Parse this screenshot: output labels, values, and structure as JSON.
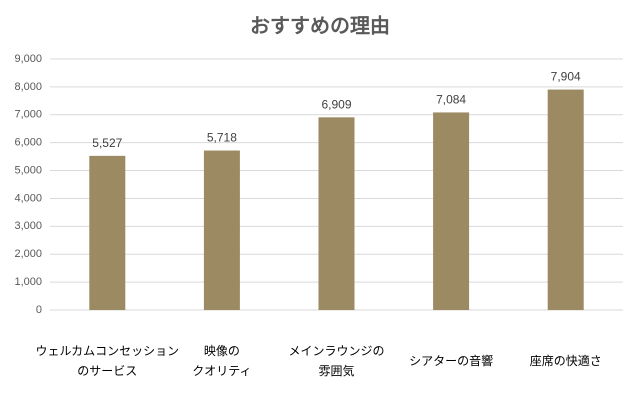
{
  "chart_data": {
    "type": "bar",
    "title": "おすすめの理由",
    "categories": [
      "ウェルカムコンセッション\nのサービス",
      "映像の\nクオリティ",
      "メインラウンジの\n雰囲気",
      "シアターの音響",
      "座席の快適さ"
    ],
    "values": [
      5527,
      5718,
      6909,
      7084,
      7904
    ],
    "value_labels": [
      "5,527",
      "5,718",
      "6,909",
      "7,084",
      "7,904"
    ],
    "color": "#9b8a62",
    "ylim": [
      0,
      9000
    ],
    "yticks": [
      0,
      {
        "value": 1000,
        "label": "1,000"
      },
      {
        "value": 2000,
        "label": "2,000"
      },
      {
        "value": 3000,
        "label": "3,000"
      },
      {
        "value": 4000,
        "label": "4,000"
      },
      {
        "value": 5000,
        "label": "5,000"
      },
      {
        "value": 6000,
        "label": "6,000"
      },
      {
        "value": 7000,
        "label": "7,000"
      },
      {
        "value": 8000,
        "label": "8,000"
      },
      {
        "value": 9000,
        "label": "9,000"
      }
    ],
    "grid": true
  }
}
